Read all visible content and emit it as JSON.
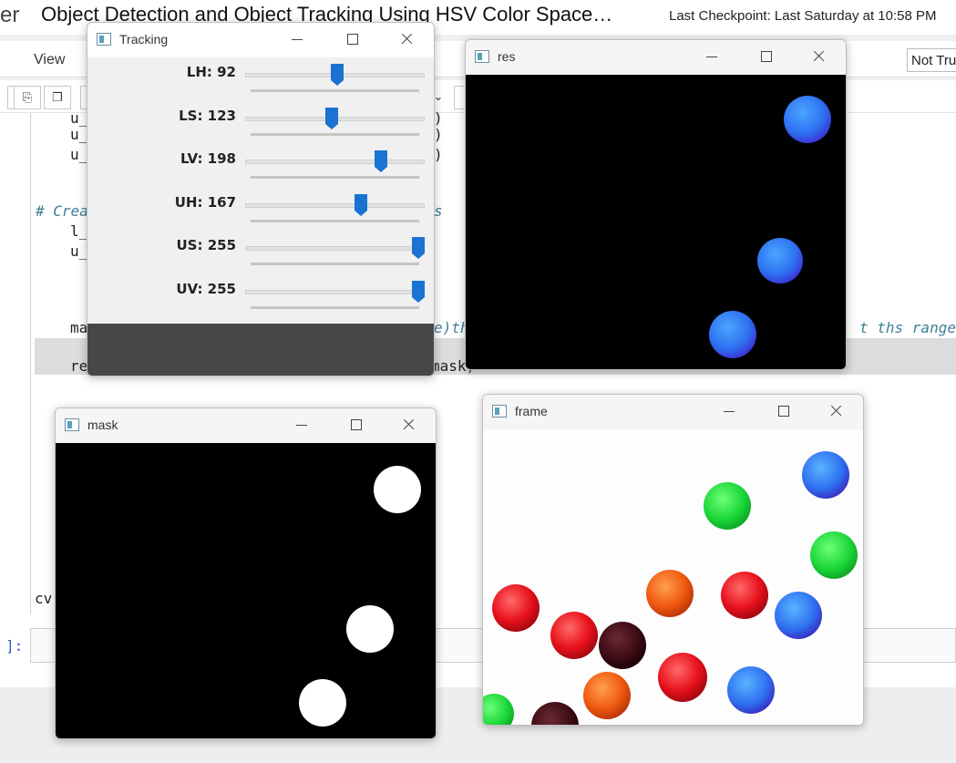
{
  "notebook": {
    "logo_fragment": "er",
    "title": "Object Detection and Object Tracking Using HSV Color Space…",
    "checkpoint": "Last Checkpoint: Last Saturday at 10:58 PM",
    "menu_view": "View",
    "trusted_label": "Not Trusted",
    "code_lines": {
      "l1": "u_",
      "l2": "u_",
      "l3": "u_",
      "paren1": ")",
      "paren2": ")",
      "paren3": ")",
      "comment_start": "# Crea",
      "comment_end": "s",
      "l4": "l_",
      "l5": "u_",
      "mask_start": "ma",
      "mask_mid": "e)th",
      "mask_end": "t ths range)",
      "res_start": "re",
      "res_end": "mask)",
      "cv_line": "cv",
      "prompt": "]:"
    }
  },
  "windows": {
    "tracking": {
      "title": "Tracking",
      "trackbars": [
        {
          "label": "LH: 92",
          "value": 92,
          "max": 179
        },
        {
          "label": "LS: 123",
          "value": 123,
          "max": 255
        },
        {
          "label": "LV: 198",
          "value": 198,
          "max": 255
        },
        {
          "label": "UH: 167",
          "value": 167,
          "max": 255
        },
        {
          "label": "US: 255",
          "value": 255,
          "max": 255
        },
        {
          "label": "UV: 255",
          "value": 255,
          "max": 255
        }
      ],
      "thumb_color": "#1a73d1"
    },
    "res": {
      "title": "res"
    },
    "mask": {
      "title": "mask"
    },
    "frame": {
      "title": "frame"
    }
  },
  "icons": {
    "window_icon": "app-window-icon",
    "minimize": "minimize-icon",
    "maximize": "maximize-icon",
    "close": "close-icon"
  },
  "colors": {
    "blue_ball": "#3b82e8",
    "green_ball": "#22d43c",
    "red_ball": "#e8111c",
    "orange_ball": "#f06010",
    "dark_ball": "#3a0a12"
  }
}
